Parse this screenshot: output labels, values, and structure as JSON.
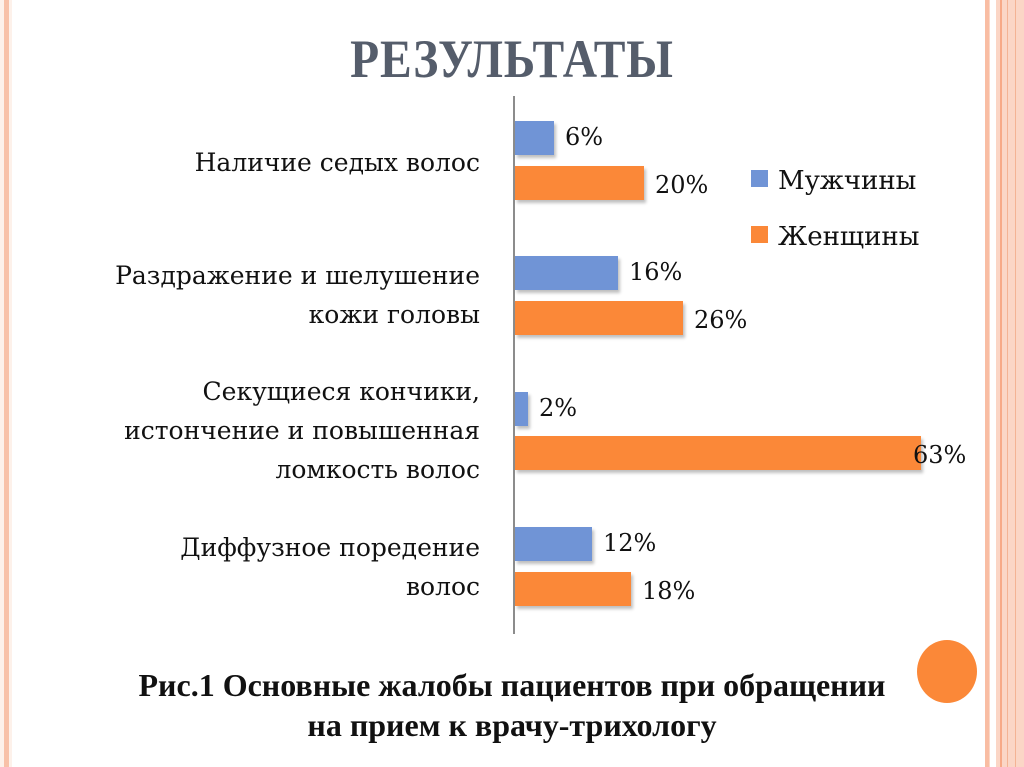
{
  "slide": {
    "title": "РЕЗУЛЬТАТЫ",
    "caption_lines": [
      "Рис.1 Основные жалобы пациентов при обращении",
      "на прием к врачу-трихологу"
    ],
    "accent_colors": {
      "border": "#f8c1a8",
      "circle": "#fb8838"
    }
  },
  "legend": [
    {
      "label": "Мужчины",
      "color": "#7094d6"
    },
    {
      "label": "Женщины",
      "color": "#fb8838"
    }
  ],
  "categories": [
    {
      "lines": [
        "Наличие седых волос"
      ],
      "male": "6%",
      "female": "20%"
    },
    {
      "lines": [
        "Раздражение и шелушение",
        "кожи головы"
      ],
      "male": "16%",
      "female": "26%"
    },
    {
      "lines": [
        "Секущиеся кончики,",
        "истончение и повышенная",
        "ломкость волос"
      ],
      "male": "2%",
      "female": "63%"
    },
    {
      "lines": [
        "Диффузное поредение",
        "волос"
      ],
      "male": "12%",
      "female": "18%"
    }
  ],
  "chart_data": {
    "type": "bar",
    "orientation": "horizontal",
    "title": "Рис.1 Основные жалобы пациентов при обращении на прием к врачу-трихологу",
    "categories": [
      "Наличие седых волос",
      "Раздражение и шелушение кожи головы",
      "Секущиеся кончики, истончение и повышенная ломкость волос",
      "Диффузное поредение волос"
    ],
    "series": [
      {
        "name": "Мужчины",
        "color": "#7094d6",
        "values": [
          6,
          16,
          2,
          12
        ]
      },
      {
        "name": "Женщины",
        "color": "#fb8838",
        "values": [
          20,
          26,
          63,
          18
        ]
      }
    ],
    "data_labels": true,
    "value_suffix": "%",
    "xlabel": "",
    "ylabel": "",
    "xlim": [
      0,
      63
    ],
    "grid": false,
    "legend_position": "right-top"
  }
}
